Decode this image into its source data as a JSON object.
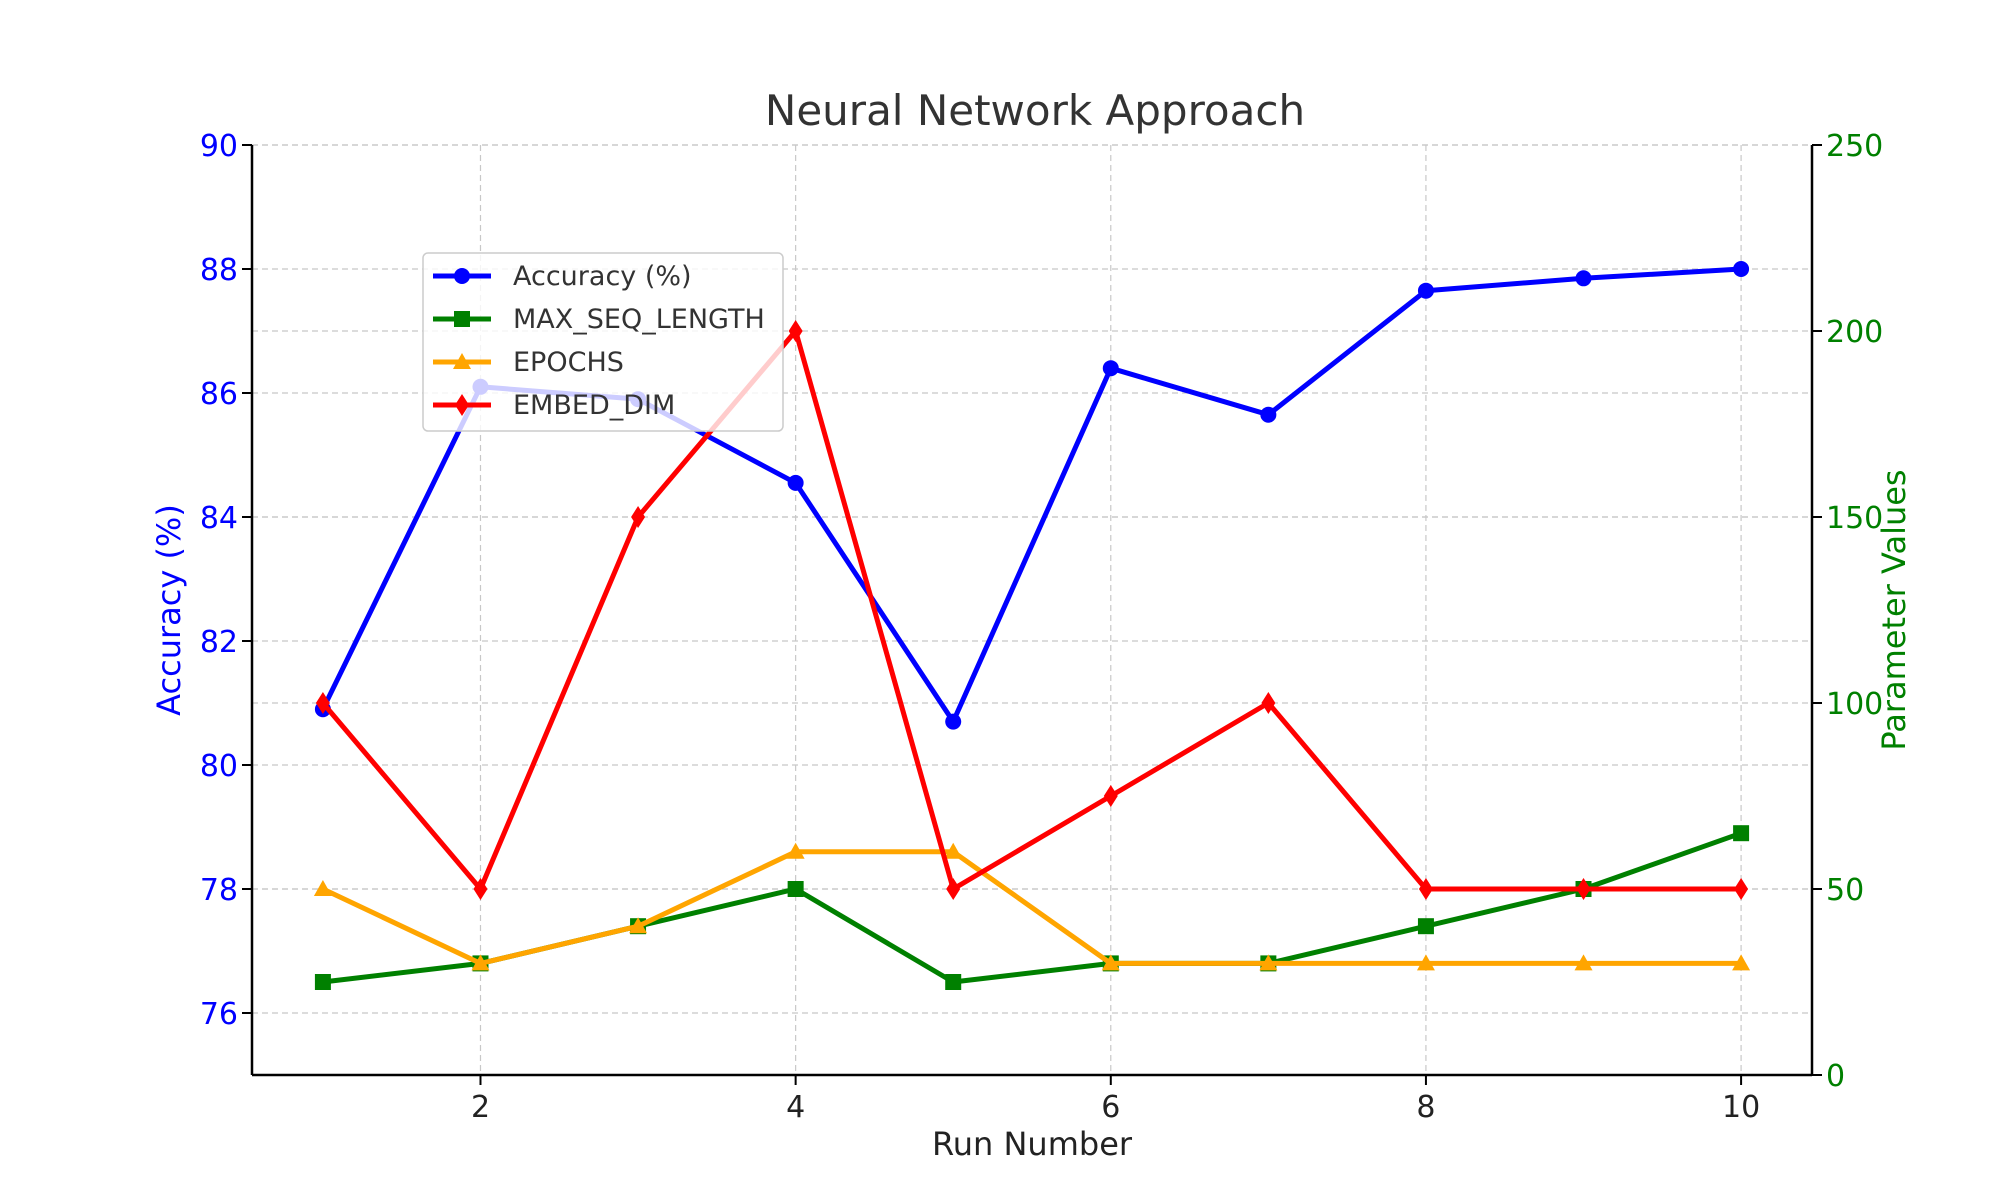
{
  "chart_data": {
    "type": "line",
    "title": "Neural Network Approach",
    "xlabel": "Run Number",
    "ylabel_left": "Accuracy (%)",
    "ylabel_right": "Parameter Values",
    "xlim": [
      0.55,
      10.45
    ],
    "ylim_left": [
      75,
      90
    ],
    "ylim_right": [
      0,
      250
    ],
    "x_ticks": [
      2,
      4,
      6,
      8,
      10
    ],
    "y_left_ticks": [
      76,
      78,
      80,
      82,
      84,
      86,
      88,
      90
    ],
    "y_right_ticks": [
      0,
      50,
      100,
      150,
      200,
      250
    ],
    "grid": true,
    "legend_position": "upper-left",
    "x": [
      1,
      2,
      3,
      4,
      5,
      6,
      7,
      8,
      9,
      10
    ],
    "series": [
      {
        "name": "Accuracy (%)",
        "axis": "left",
        "color": "#0000ff",
        "marker": "circle",
        "values": [
          80.9,
          86.1,
          85.9,
          84.55,
          80.7,
          86.4,
          85.65,
          87.65,
          87.85,
          88.0
        ]
      },
      {
        "name": "MAX_SEQ_LENGTH",
        "axis": "right",
        "color": "#008000",
        "marker": "square",
        "values": [
          25,
          30,
          40,
          50,
          25,
          30,
          30,
          40,
          50,
          65
        ]
      },
      {
        "name": "EPOCHS",
        "axis": "right",
        "color": "#ffa500",
        "marker": "triangle",
        "values": [
          50,
          30,
          40,
          60,
          60,
          30,
          30,
          30,
          30,
          30
        ]
      },
      {
        "name": "EMBED_DIM",
        "axis": "right",
        "color": "#ff0000",
        "marker": "diamond",
        "values": [
          100,
          50,
          150,
          200,
          50,
          75,
          100,
          50,
          50,
          50
        ]
      }
    ]
  }
}
